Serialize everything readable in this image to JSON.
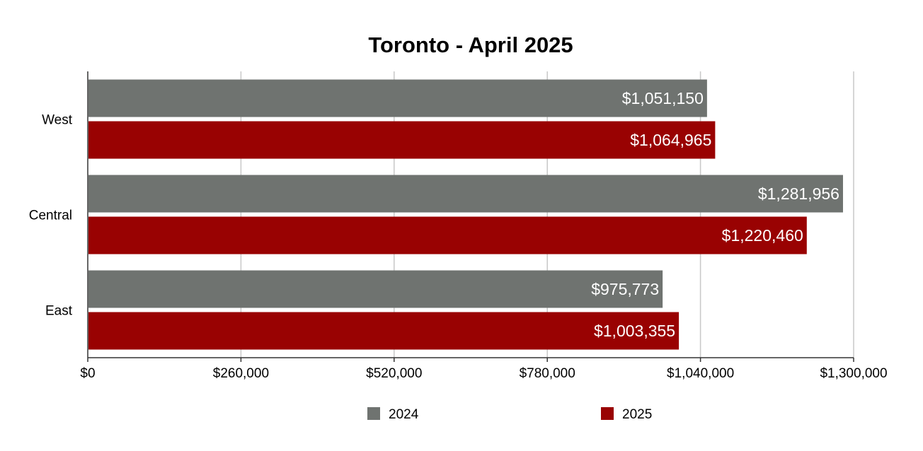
{
  "chart_data": {
    "type": "bar",
    "orientation": "horizontal",
    "title": "Toronto - April 2025",
    "xlabel": "",
    "ylabel": "",
    "categories": [
      "West",
      "Central",
      "East"
    ],
    "series": [
      {
        "name": "2024",
        "color": "#6f7370",
        "values": [
          1051150,
          1281956,
          975773
        ],
        "labels": [
          "$1,051,150",
          "$1,281,956",
          "$975,773"
        ]
      },
      {
        "name": "2025",
        "color": "#990202",
        "values": [
          1064965,
          1220460,
          1003355
        ],
        "labels": [
          "$1,064,965",
          "$1,220,460",
          "$1,003,355"
        ]
      }
    ],
    "xlim": [
      0,
      1300000
    ],
    "xticks": [
      0,
      260000,
      520000,
      780000,
      1040000,
      1300000
    ],
    "xtick_labels": [
      "$0",
      "$260,000",
      "$520,000",
      "$780,000",
      "$1,040,000",
      "$1,300,000"
    ],
    "grid": true,
    "legend": "bottom"
  }
}
